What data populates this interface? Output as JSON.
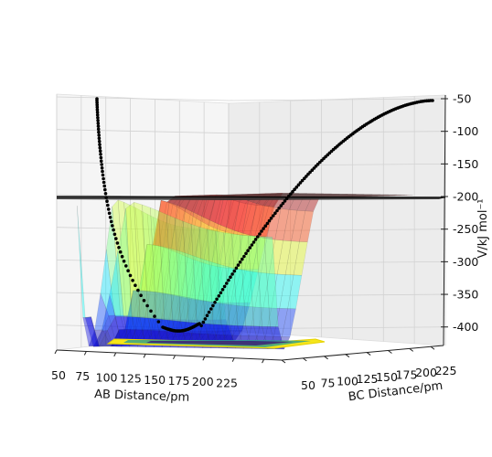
{
  "chart_data": {
    "type": "surface3d",
    "xlabel": "AB Distance/pm",
    "ylabel": "BC Distance/pm",
    "zlabel": "V/kJ mol⁻¹",
    "x_ticks": [
      "50",
      "75",
      "100",
      "125",
      "150",
      "175",
      "200",
      "225"
    ],
    "y_ticks": [
      "50",
      "75",
      "100",
      "125",
      "150",
      "175",
      "200",
      "225"
    ],
    "z_ticks": [
      "-50",
      "-100",
      "-150",
      "-200",
      "-250",
      "-300",
      "-350",
      "-400"
    ],
    "xlim": [
      50,
      240
    ],
    "ylim": [
      50,
      240
    ],
    "zlim": [
      -430,
      -40
    ],
    "colormap": "jet",
    "surface_alpha": 0.4,
    "grid": true,
    "trajectory_color": "#000000",
    "trajectory_style": "dots",
    "contour_on_floor": true,
    "plane_z": -200
  }
}
